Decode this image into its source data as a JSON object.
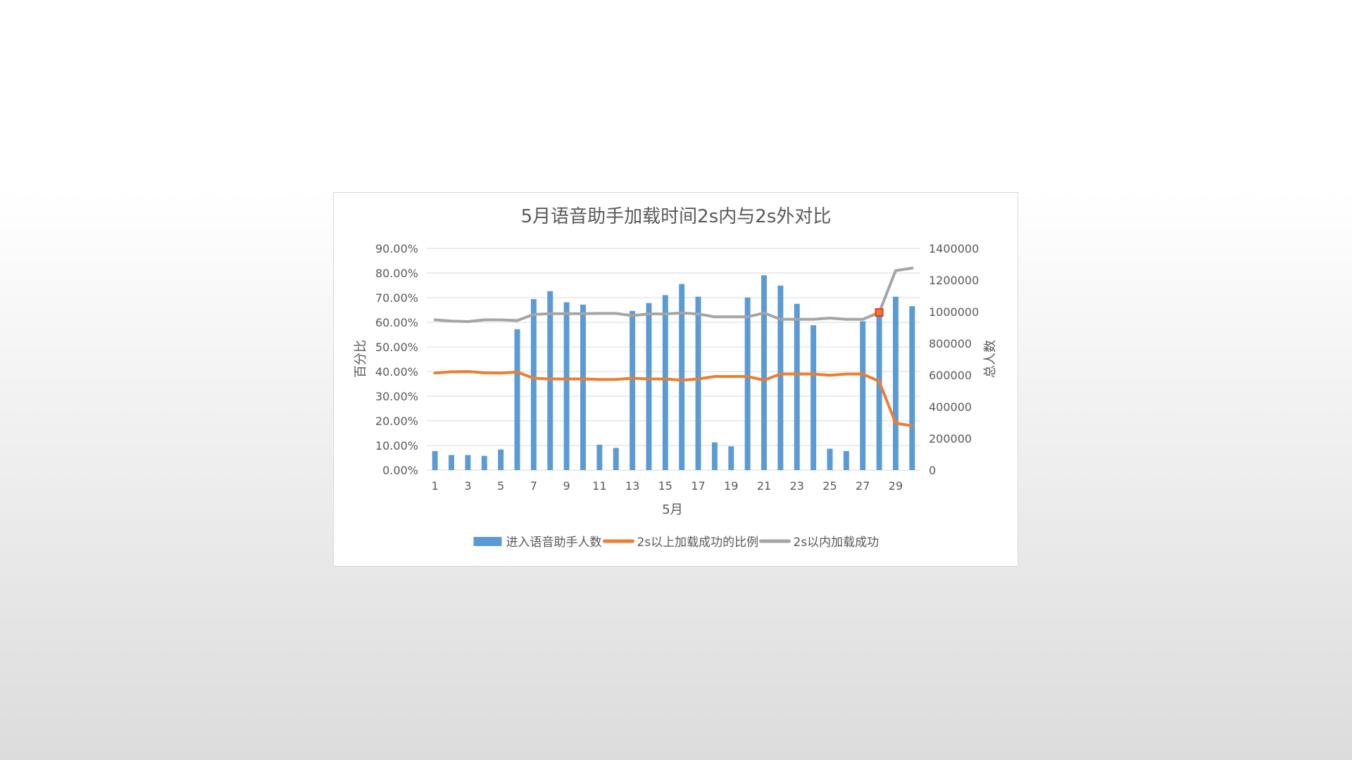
{
  "chart_data": {
    "type": "bar+line",
    "title": "5月语音助手加载时间2s内与2s外对比",
    "xlabel": "5月",
    "ylabel_left": "百分比",
    "ylabel_right": "总人数",
    "categories": [
      "1",
      "2",
      "3",
      "4",
      "5",
      "6",
      "7",
      "8",
      "9",
      "10",
      "11",
      "12",
      "13",
      "14",
      "15",
      "16",
      "17",
      "18",
      "19",
      "20",
      "21",
      "22",
      "23",
      "24",
      "25",
      "26",
      "27",
      "28",
      "29",
      "30"
    ],
    "x_tick_labels": [
      "1",
      "3",
      "5",
      "7",
      "9",
      "11",
      "13",
      "15",
      "17",
      "19",
      "21",
      "23",
      "25",
      "27",
      "29"
    ],
    "ylim_left": [
      0,
      0.9
    ],
    "left_ticks": [
      "0.00%",
      "10.00%",
      "20.00%",
      "30.00%",
      "40.00%",
      "50.00%",
      "60.00%",
      "70.00%",
      "80.00%",
      "90.00%"
    ],
    "ylim_right": [
      0,
      1400000
    ],
    "right_ticks": [
      "0",
      "200000",
      "400000",
      "600000",
      "800000",
      "1000000",
      "1200000",
      "1400000"
    ],
    "grid": true,
    "legend_position": "bottom",
    "series": [
      {
        "name": "进入语音助手人数",
        "type": "bar",
        "axis": "right",
        "color": "#5B9BD5",
        "values": [
          120000,
          95000,
          95000,
          90000,
          130000,
          890000,
          1080000,
          1130000,
          1060000,
          1045000,
          160000,
          140000,
          1005000,
          1055000,
          1105000,
          1175000,
          1095000,
          175000,
          150000,
          1090000,
          1230000,
          1165000,
          1050000,
          915000,
          135000,
          120000,
          940000,
          1000000,
          1095000,
          1035000
        ]
      },
      {
        "name": "2s以上加载成功的比例",
        "type": "line",
        "axis": "left",
        "color": "#ED7D31",
        "values": [
          0.394,
          0.399,
          0.4,
          0.395,
          0.394,
          0.398,
          0.373,
          0.37,
          0.37,
          0.37,
          0.368,
          0.368,
          0.373,
          0.37,
          0.37,
          0.365,
          0.37,
          0.38,
          0.38,
          0.38,
          0.365,
          0.39,
          0.39,
          0.39,
          0.385,
          0.39,
          0.39,
          0.36,
          0.19,
          0.18
        ]
      },
      {
        "name": "2s以内加载成功",
        "type": "line",
        "axis": "left",
        "color": "#A5A5A5",
        "values": [
          0.61,
          0.605,
          0.603,
          0.61,
          0.61,
          0.607,
          0.632,
          0.635,
          0.635,
          0.635,
          0.636,
          0.636,
          0.627,
          0.634,
          0.634,
          0.638,
          0.634,
          0.622,
          0.622,
          0.622,
          0.638,
          0.612,
          0.612,
          0.612,
          0.617,
          0.612,
          0.612,
          0.64,
          0.81,
          0.82
        ]
      }
    ],
    "highlighted_point": {
      "series": "2s以内加载成功",
      "category": "28",
      "color": "#E8361D"
    }
  }
}
